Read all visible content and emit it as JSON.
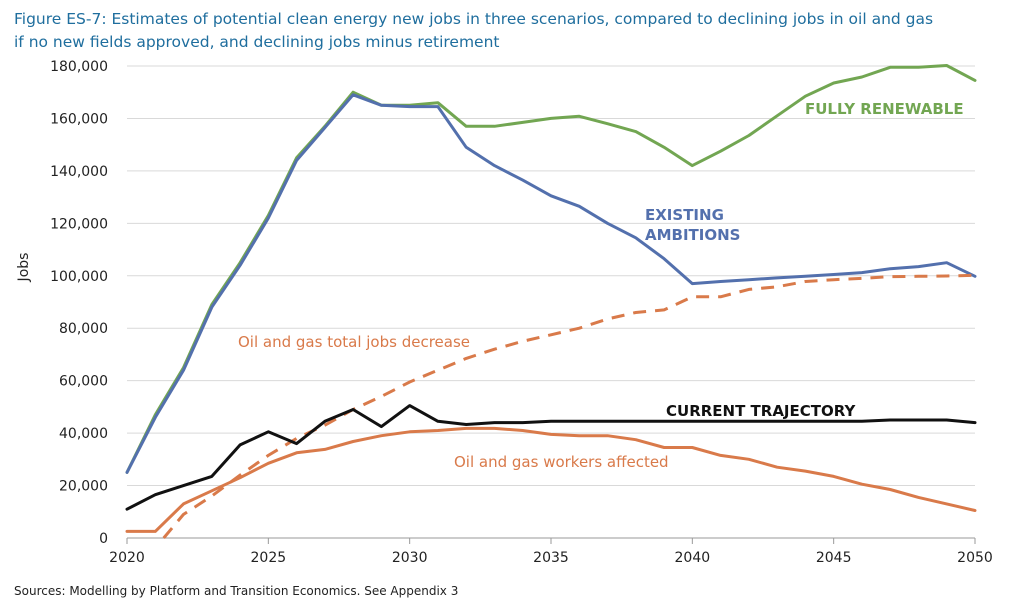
{
  "title_line1": "Figure ES-7: Estimates of potential clean energy new jobs in three scenarios, compared to declining jobs in oil and gas",
  "title_line2": "if no new fields approved, and declining jobs minus retirement",
  "source": "Sources: Modelling by Platform and Transition Economics. See Appendix 3",
  "chart_data": {
    "type": "line",
    "ylabel": "Jobs",
    "xlim": [
      2020,
      2050
    ],
    "ylim": [
      0,
      180000
    ],
    "x_ticks": [
      2020,
      2025,
      2030,
      2035,
      2040,
      2045,
      2050
    ],
    "y_ticks": [
      "0",
      "20,000",
      "40,000",
      "60,000",
      "80,000",
      "100,000",
      "120,000",
      "140,000",
      "160,000",
      "180,000"
    ],
    "y_tick_values": [
      0,
      20000,
      40000,
      60000,
      80000,
      100000,
      120000,
      140000,
      160000,
      180000
    ],
    "grid": "horizontal",
    "series": [
      {
        "name": "FULLY RENEWABLE",
        "color": "#72a652",
        "style": "solid",
        "x": [
          2020,
          2021,
          2022,
          2023,
          2024,
          2025,
          2026,
          2027,
          2028,
          2029,
          2030,
          2031,
          2032,
          2033,
          2034,
          2035,
          2036,
          2037,
          2038,
          2039,
          2040,
          2041,
          2042,
          2043,
          2044,
          2045,
          2046,
          2047,
          2048,
          2049,
          2050
        ],
        "y": [
          25000,
          47000,
          65000,
          89000,
          105000,
          123000,
          145000,
          157000,
          170000,
          165000,
          165000,
          166000,
          157000,
          157000,
          158500,
          160000,
          160800,
          158000,
          155000,
          149000,
          142000,
          147500,
          153500,
          161000,
          168500,
          173500,
          175800,
          179500,
          179500,
          180200,
          174500
        ]
      },
      {
        "name": "EXISTING AMBITIONS",
        "color": "#5370ad",
        "style": "solid",
        "x": [
          2020,
          2021,
          2022,
          2023,
          2024,
          2025,
          2026,
          2027,
          2028,
          2029,
          2030,
          2031,
          2032,
          2033,
          2034,
          2035,
          2036,
          2037,
          2038,
          2039,
          2040,
          2041,
          2042,
          2043,
          2044,
          2045,
          2046,
          2047,
          2048,
          2049,
          2050
        ],
        "y": [
          25000,
          46000,
          64000,
          88000,
          104000,
          122000,
          144000,
          156500,
          169000,
          165000,
          164500,
          164500,
          149000,
          142000,
          136500,
          130500,
          126500,
          120000,
          114500,
          106500,
          97000,
          97800,
          98500,
          99200,
          99800,
          100500,
          101200,
          102700,
          103500,
          105000,
          99800
        ]
      },
      {
        "name": "Oil and gas total jobs decrease",
        "color": "#d97a4a",
        "style": "dashed",
        "x": [
          2021.3,
          2022,
          2023,
          2024,
          2025,
          2026,
          2027,
          2028,
          2029,
          2030,
          2031,
          2032,
          2033,
          2034,
          2035,
          2036,
          2037,
          2038,
          2039,
          2040,
          2041,
          2042,
          2043,
          2044,
          2045,
          2046,
          2047,
          2048,
          2049,
          2050
        ],
        "y": [
          0,
          9000,
          16000,
          24000,
          31500,
          38000,
          43000,
          49000,
          54000,
          59500,
          64000,
          68500,
          72000,
          75000,
          77500,
          80000,
          83500,
          86000,
          87000,
          92000,
          92000,
          94800,
          95800,
          97800,
          98500,
          99000,
          99700,
          99800,
          99900,
          100200
        ]
      },
      {
        "name": "CURRENT TRAJECTORY",
        "color": "#111111",
        "style": "solid",
        "x": [
          2020,
          2021,
          2022,
          2023,
          2024,
          2025,
          2026,
          2027,
          2028,
          2029,
          2030,
          2031,
          2032,
          2033,
          2034,
          2035,
          2036,
          2037,
          2038,
          2039,
          2040,
          2041,
          2042,
          2043,
          2044,
          2045,
          2046,
          2047,
          2048,
          2049,
          2050
        ],
        "y": [
          11000,
          16500,
          20000,
          23500,
          35500,
          40500,
          36000,
          44500,
          49000,
          42500,
          50500,
          44500,
          43300,
          44000,
          44000,
          44500,
          44500,
          44500,
          44500,
          44500,
          44500,
          44500,
          44500,
          44500,
          44500,
          44500,
          44500,
          45000,
          45000,
          45000,
          44000
        ]
      },
      {
        "name": "Oil and gas workers affected",
        "color": "#d97a4a",
        "style": "solid",
        "x": [
          2020,
          2021,
          2022,
          2023,
          2024,
          2025,
          2026,
          2027,
          2028,
          2029,
          2030,
          2031,
          2032,
          2033,
          2034,
          2035,
          2036,
          2037,
          2038,
          2039,
          2040,
          2041,
          2042,
          2043,
          2044,
          2045,
          2046,
          2047,
          2048,
          2049,
          2050
        ],
        "y": [
          2500,
          2500,
          13000,
          18000,
          23000,
          28500,
          32500,
          33800,
          36800,
          39000,
          40500,
          41000,
          41800,
          41800,
          41000,
          39500,
          39000,
          39000,
          37500,
          34500,
          34500,
          31500,
          30000,
          27000,
          25500,
          23500,
          20500,
          18500,
          15500,
          13000,
          10500
        ]
      }
    ],
    "annotations": [
      {
        "text": "FULLY RENEWABLE",
        "series": 0
      },
      {
        "text": "EXISTING",
        "series": 1
      },
      {
        "text": "AMBITIONS",
        "series": 1
      },
      {
        "text": "Oil and gas total jobs decrease",
        "series": 2
      },
      {
        "text": "CURRENT TRAJECTORY",
        "series": 3
      },
      {
        "text": "Oil and gas workers affected",
        "series": 4
      }
    ]
  }
}
